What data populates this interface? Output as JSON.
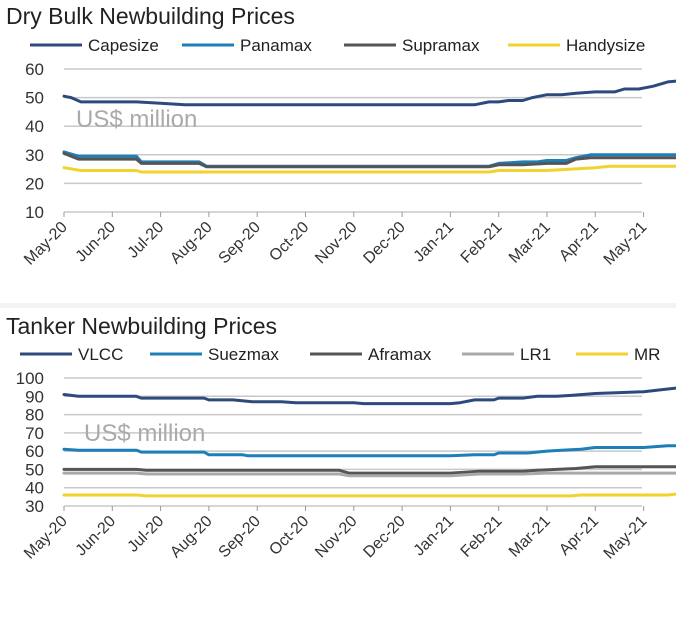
{
  "chart_data": [
    {
      "type": "line",
      "title": "Dry Bulk Newbuilding Prices",
      "units_annotation": "US$ million",
      "xlabel": "",
      "ylabel": "",
      "ylim": [
        10,
        60
      ],
      "yticks": [
        10,
        20,
        30,
        40,
        50,
        60
      ],
      "grid": true,
      "legend_position": "top",
      "x_tick_labels": [
        "May-20",
        "Jun-20",
        "Jul-20",
        "Aug-20",
        "Sep-20",
        "Oct-20",
        "Nov-20",
        "Dec-20",
        "Jan-21",
        "Feb-21",
        "Mar-21",
        "Apr-21",
        "May-21"
      ],
      "series": [
        {
          "name": "Capesize",
          "color": "#2e4a7d",
          "points": [
            [
              0,
              50.5
            ],
            [
              0.15,
              50
            ],
            [
              0.35,
              48.5
            ],
            [
              1,
              48.5
            ],
            [
              1.5,
              48.5
            ],
            [
              2,
              48
            ],
            [
              2.5,
              47.5
            ],
            [
              3,
              47.5
            ],
            [
              4,
              47.5
            ],
            [
              5,
              47.5
            ],
            [
              6,
              47.5
            ],
            [
              7,
              47.5
            ],
            [
              8,
              47.5
            ],
            [
              8.5,
              47.5
            ],
            [
              8.8,
              48.5
            ],
            [
              9,
              48.5
            ],
            [
              9.2,
              49
            ],
            [
              9.5,
              49
            ],
            [
              9.7,
              50
            ],
            [
              10,
              51
            ],
            [
              10.3,
              51
            ],
            [
              10.6,
              51.5
            ],
            [
              11,
              52
            ],
            [
              11.4,
              52
            ],
            [
              11.6,
              53
            ],
            [
              11.9,
              53
            ],
            [
              12.2,
              54
            ],
            [
              12.5,
              55.5
            ],
            [
              12.85,
              56
            ]
          ]
        },
        {
          "name": "Panamax",
          "color": "#1d7fb8",
          "points": [
            [
              0,
              31
            ],
            [
              0.3,
              29.5
            ],
            [
              1,
              29.5
            ],
            [
              1.5,
              29.5
            ],
            [
              1.6,
              27.5
            ],
            [
              2,
              27.5
            ],
            [
              2.8,
              27.5
            ],
            [
              2.95,
              26
            ],
            [
              4,
              26
            ],
            [
              5,
              26
            ],
            [
              6,
              26
            ],
            [
              7,
              26
            ],
            [
              8,
              26
            ],
            [
              8.8,
              26
            ],
            [
              9,
              27
            ],
            [
              9.5,
              27.5
            ],
            [
              9.8,
              27.5
            ],
            [
              10,
              28
            ],
            [
              10.4,
              28
            ],
            [
              10.6,
              29
            ],
            [
              10.9,
              30
            ],
            [
              11.5,
              30
            ],
            [
              12,
              30
            ],
            [
              12.5,
              30
            ],
            [
              12.85,
              30
            ]
          ]
        },
        {
          "name": "Supramax",
          "color": "#555555",
          "points": [
            [
              0,
              30.5
            ],
            [
              0.3,
              28.5
            ],
            [
              1,
              28.5
            ],
            [
              1.5,
              28.5
            ],
            [
              1.6,
              27
            ],
            [
              2,
              27
            ],
            [
              2.8,
              27
            ],
            [
              2.95,
              25.8
            ],
            [
              4,
              25.8
            ],
            [
              5,
              25.8
            ],
            [
              6,
              25.8
            ],
            [
              7,
              25.8
            ],
            [
              8,
              25.8
            ],
            [
              8.8,
              25.8
            ],
            [
              9,
              26.5
            ],
            [
              9.5,
              26.5
            ],
            [
              10,
              27
            ],
            [
              10.4,
              27
            ],
            [
              10.6,
              28.5
            ],
            [
              10.9,
              29
            ],
            [
              11.5,
              29
            ],
            [
              12,
              29
            ],
            [
              12.5,
              29
            ],
            [
              12.85,
              29
            ]
          ]
        },
        {
          "name": "Handysize",
          "color": "#f2d22e",
          "points": [
            [
              0,
              25.5
            ],
            [
              0.35,
              24.5
            ],
            [
              1,
              24.5
            ],
            [
              1.5,
              24.5
            ],
            [
              1.6,
              24
            ],
            [
              2,
              24
            ],
            [
              3,
              24
            ],
            [
              4,
              24
            ],
            [
              5,
              24
            ],
            [
              6,
              24
            ],
            [
              7,
              24
            ],
            [
              8,
              24
            ],
            [
              8.8,
              24
            ],
            [
              9,
              24.5
            ],
            [
              9.5,
              24.5
            ],
            [
              10,
              24.5
            ],
            [
              10.5,
              25
            ],
            [
              11,
              25.5
            ],
            [
              11.3,
              26
            ],
            [
              12,
              26
            ],
            [
              12.85,
              26
            ]
          ]
        }
      ]
    },
    {
      "type": "line",
      "title": "Tanker Newbuilding Prices",
      "units_annotation": "US$ million",
      "xlabel": "",
      "ylabel": "",
      "ylim": [
        30,
        100
      ],
      "yticks": [
        30,
        40,
        50,
        60,
        70,
        80,
        90,
        100
      ],
      "grid": true,
      "legend_position": "top",
      "x_tick_labels": [
        "May-20",
        "Jun-20",
        "Jul-20",
        "Aug-20",
        "Sep-20",
        "Oct-20",
        "Nov-20",
        "Dec-20",
        "Jan-21",
        "Feb-21",
        "Mar-21",
        "Apr-21",
        "May-21"
      ],
      "series": [
        {
          "name": "VLCC",
          "color": "#2e4a7d",
          "points": [
            [
              0,
              91
            ],
            [
              0.3,
              90
            ],
            [
              1,
              90
            ],
            [
              1.5,
              90
            ],
            [
              1.6,
              89
            ],
            [
              2,
              89
            ],
            [
              2.9,
              89
            ],
            [
              3,
              88
            ],
            [
              3.5,
              88
            ],
            [
              3.9,
              87
            ],
            [
              4.5,
              87
            ],
            [
              4.8,
              86.5
            ],
            [
              5,
              86.5
            ],
            [
              6,
              86.5
            ],
            [
              6.2,
              86
            ],
            [
              7,
              86
            ],
            [
              8,
              86
            ],
            [
              8.2,
              86.5
            ],
            [
              8.5,
              88
            ],
            [
              8.9,
              88
            ],
            [
              9,
              89
            ],
            [
              9.5,
              89
            ],
            [
              9.8,
              90
            ],
            [
              10.2,
              90
            ],
            [
              10.5,
              90.5
            ],
            [
              11,
              91.5
            ],
            [
              11.5,
              92
            ],
            [
              12,
              92.5
            ],
            [
              12.5,
              94
            ],
            [
              12.85,
              95
            ]
          ]
        },
        {
          "name": "Suezmax",
          "color": "#1d7fb8",
          "points": [
            [
              0,
              61
            ],
            [
              0.3,
              60.5
            ],
            [
              1,
              60.5
            ],
            [
              1.5,
              60.5
            ],
            [
              1.6,
              59.5
            ],
            [
              2,
              59.5
            ],
            [
              2.9,
              59.5
            ],
            [
              3,
              58
            ],
            [
              3.7,
              58
            ],
            [
              3.8,
              57.5
            ],
            [
              5,
              57.5
            ],
            [
              6,
              57.5
            ],
            [
              7,
              57.5
            ],
            [
              8,
              57.5
            ],
            [
              8.5,
              58
            ],
            [
              8.9,
              58
            ],
            [
              9,
              59
            ],
            [
              9.6,
              59
            ],
            [
              10,
              60
            ],
            [
              10.3,
              60.5
            ],
            [
              10.7,
              61
            ],
            [
              11,
              62
            ],
            [
              11.5,
              62
            ],
            [
              12,
              62
            ],
            [
              12.5,
              63
            ],
            [
              12.85,
              63
            ]
          ]
        },
        {
          "name": "Aframax",
          "color": "#555555",
          "points": [
            [
              0,
              50
            ],
            [
              1,
              50
            ],
            [
              1.5,
              50
            ],
            [
              1.7,
              49.5
            ],
            [
              2,
              49.5
            ],
            [
              3,
              49.5
            ],
            [
              4,
              49.5
            ],
            [
              5,
              49.5
            ],
            [
              5.7,
              49.5
            ],
            [
              5.9,
              48
            ],
            [
              6.5,
              48
            ],
            [
              7,
              48
            ],
            [
              8,
              48
            ],
            [
              8.3,
              48.5
            ],
            [
              8.6,
              49
            ],
            [
              9,
              49
            ],
            [
              9.5,
              49
            ],
            [
              9.8,
              49.5
            ],
            [
              10.2,
              50
            ],
            [
              10.6,
              50.5
            ],
            [
              11,
              51.5
            ],
            [
              11.5,
              51.5
            ],
            [
              12,
              51.5
            ],
            [
              12.85,
              51.5
            ]
          ]
        },
        {
          "name": "LR1",
          "color": "#a9a9a9",
          "points": [
            [
              0,
              48
            ],
            [
              1,
              48
            ],
            [
              1.5,
              48
            ],
            [
              1.7,
              47.5
            ],
            [
              2,
              47.5
            ],
            [
              3,
              47.5
            ],
            [
              4,
              47.5
            ],
            [
              5,
              47.5
            ],
            [
              5.7,
              47.5
            ],
            [
              5.9,
              46.5
            ],
            [
              7,
              46.5
            ],
            [
              8,
              46.5
            ],
            [
              8.3,
              47
            ],
            [
              8.6,
              47.5
            ],
            [
              9.5,
              47.5
            ],
            [
              10,
              48
            ],
            [
              10.6,
              48
            ],
            [
              11,
              48
            ],
            [
              12,
              48
            ],
            [
              12.85,
              48
            ]
          ]
        },
        {
          "name": "MR",
          "color": "#f2d22e",
          "points": [
            [
              0,
              36
            ],
            [
              1,
              36
            ],
            [
              1.5,
              36
            ],
            [
              1.7,
              35.5
            ],
            [
              2,
              35.5
            ],
            [
              3,
              35.5
            ],
            [
              4,
              35.5
            ],
            [
              5,
              35.5
            ],
            [
              6,
              35.5
            ],
            [
              7,
              35.5
            ],
            [
              8,
              35.5
            ],
            [
              9,
              35.5
            ],
            [
              10,
              35.5
            ],
            [
              10.5,
              35.5
            ],
            [
              10.7,
              36
            ],
            [
              11,
              36
            ],
            [
              12,
              36
            ],
            [
              12.5,
              36
            ],
            [
              12.85,
              37
            ]
          ]
        }
      ]
    }
  ]
}
